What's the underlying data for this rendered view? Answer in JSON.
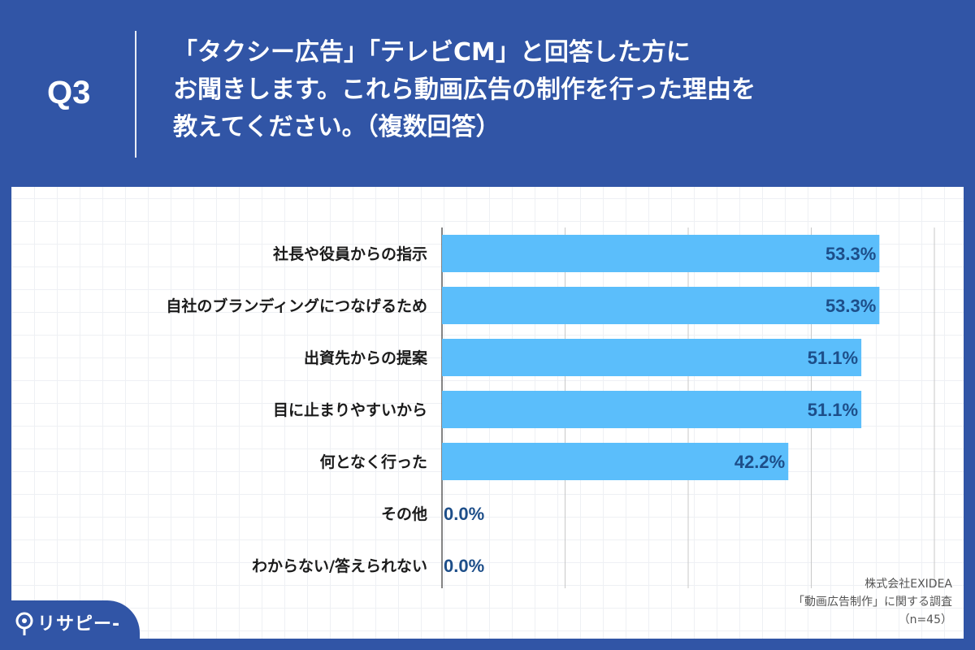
{
  "header": {
    "question_id": "Q3",
    "title_lines": [
      "「タクシー広告」「テレビCM」と回答した方に",
      "お聞きします。これら動画広告の制作を行った理由を",
      "教えてください。（複数回答）"
    ]
  },
  "chart_data": {
    "type": "bar",
    "orientation": "horizontal",
    "categories": [
      "社長や役員からの指示",
      "自社のブランディングにつなげるため",
      "出資先からの提案",
      "目に止まりやすいから",
      "何となく行った",
      "その他",
      "わからない/答えられない"
    ],
    "values": [
      53.3,
      53.3,
      51.1,
      51.1,
      42.2,
      0.0,
      0.0
    ],
    "value_labels": [
      "53.3%",
      "53.3%",
      "51.1%",
      "51.1%",
      "42.2%",
      "0.0%",
      "0.0%"
    ],
    "xlim": [
      0,
      60
    ],
    "grid_step": 15,
    "unit": "%",
    "bar_color": "#5bbefb",
    "label_color": "#1d4e89"
  },
  "source": {
    "line1": "株式会社EXIDEA",
    "line2": "「動画広告制作」に関する調査",
    "line3": "（n=45）"
  },
  "brand": {
    "name": "リサピー",
    "suffix": "-"
  }
}
